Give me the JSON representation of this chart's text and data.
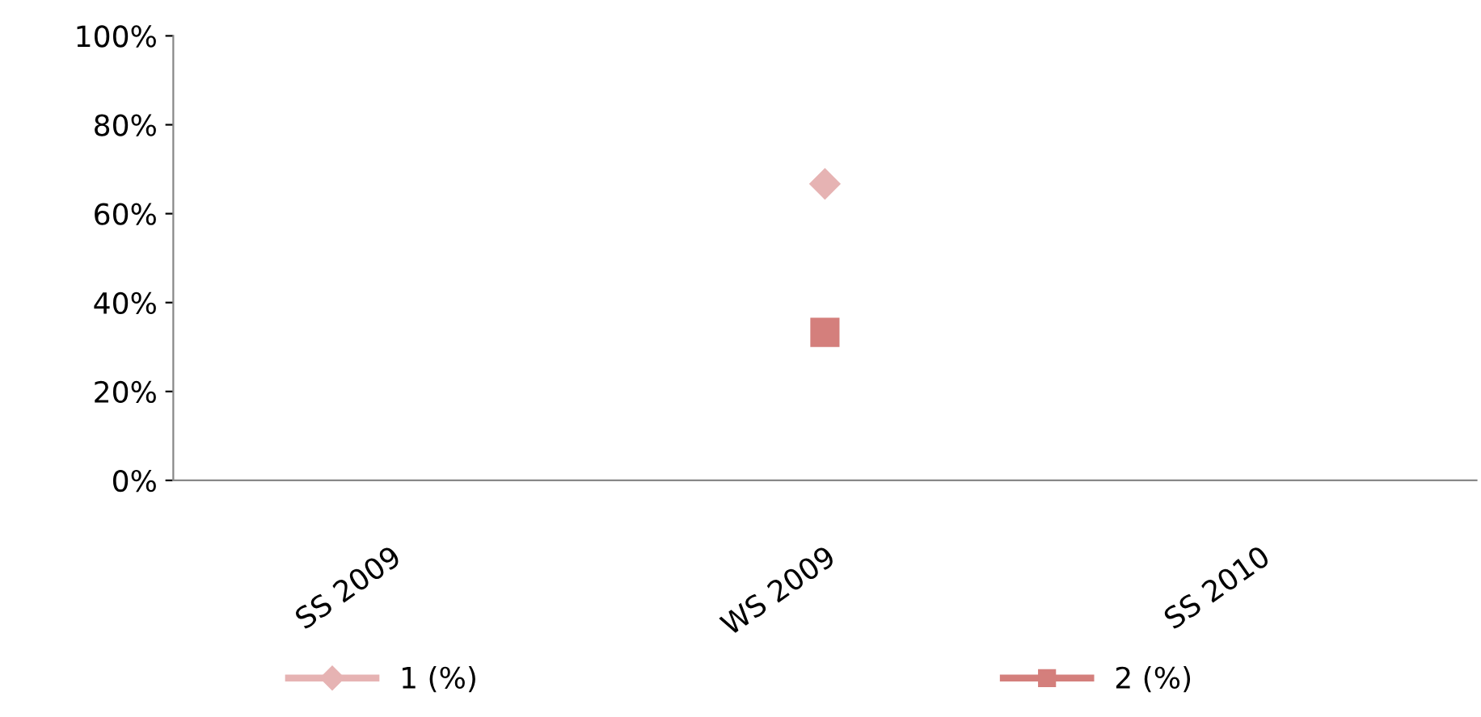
{
  "chart_data": {
    "type": "line",
    "categories": [
      "SS 2009",
      "WS 2009",
      "SS 2010"
    ],
    "series": [
      {
        "name": "1 (%)",
        "color": "#e6b3b3",
        "marker": "diamond",
        "values": [
          null,
          66.7,
          null
        ]
      },
      {
        "name": "2 (%)",
        "color": "#d47f7c",
        "marker": "square",
        "values": [
          null,
          33.3,
          null
        ]
      }
    ],
    "ylim": [
      0,
      100
    ],
    "yticks": [
      {
        "value": 0,
        "label": "0%"
      },
      {
        "value": 20,
        "label": "20%"
      },
      {
        "value": 40,
        "label": "40%"
      },
      {
        "value": 60,
        "label": "60%"
      },
      {
        "value": 80,
        "label": "80%"
      },
      {
        "value": 100,
        "label": "100%"
      }
    ],
    "grid": false,
    "legend": "bottom",
    "line_style": "solid"
  }
}
